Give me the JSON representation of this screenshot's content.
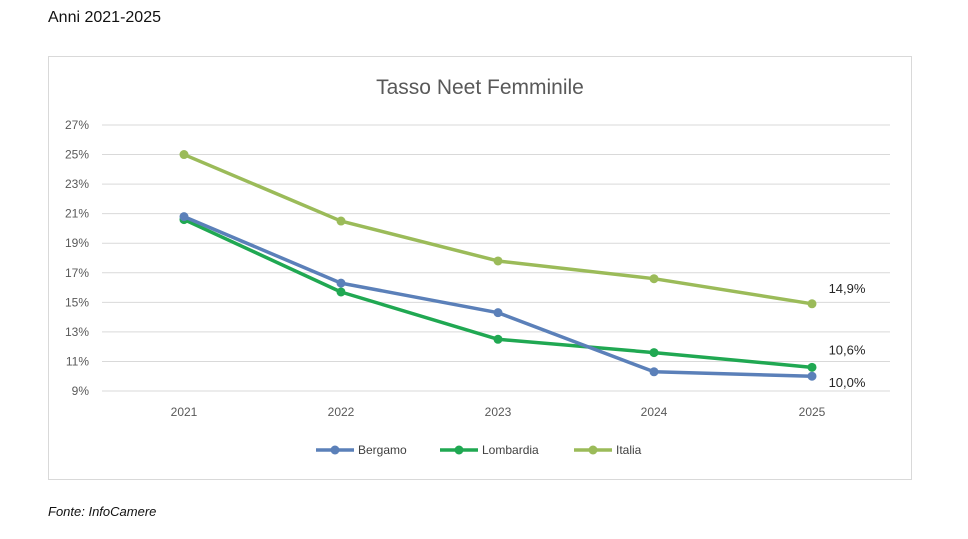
{
  "header": {
    "period": "Anni 2021-2025"
  },
  "footer": {
    "source": "Fonte: InfoCamere"
  },
  "colors": {
    "Bergamo": "#5b80b9",
    "Lombardia": "#20a852",
    "Italia": "#9bbb59",
    "grid": "#d9d9d9",
    "text": "#595959"
  },
  "chart_data": {
    "type": "line",
    "title": "Tasso Neet Femminile",
    "xlabel": "",
    "ylabel": "",
    "categories": [
      "2021",
      "2022",
      "2023",
      "2024",
      "2025"
    ],
    "y_ticks": [
      "27%",
      "25%",
      "23%",
      "21%",
      "19%",
      "17%",
      "15%",
      "13%",
      "11%",
      "9%"
    ],
    "ylim": [
      9,
      27
    ],
    "grid": true,
    "legend_position": "bottom",
    "series": [
      {
        "name": "Bergamo",
        "values": [
          20.8,
          16.3,
          14.3,
          10.3,
          10.0
        ],
        "end_label": "10,0%"
      },
      {
        "name": "Lombardia",
        "values": [
          20.6,
          15.7,
          12.5,
          11.6,
          10.6
        ],
        "end_label": "10,6%"
      },
      {
        "name": "Italia",
        "values": [
          25.0,
          20.5,
          17.8,
          16.6,
          14.9
        ],
        "end_label": "14,9%"
      }
    ]
  }
}
